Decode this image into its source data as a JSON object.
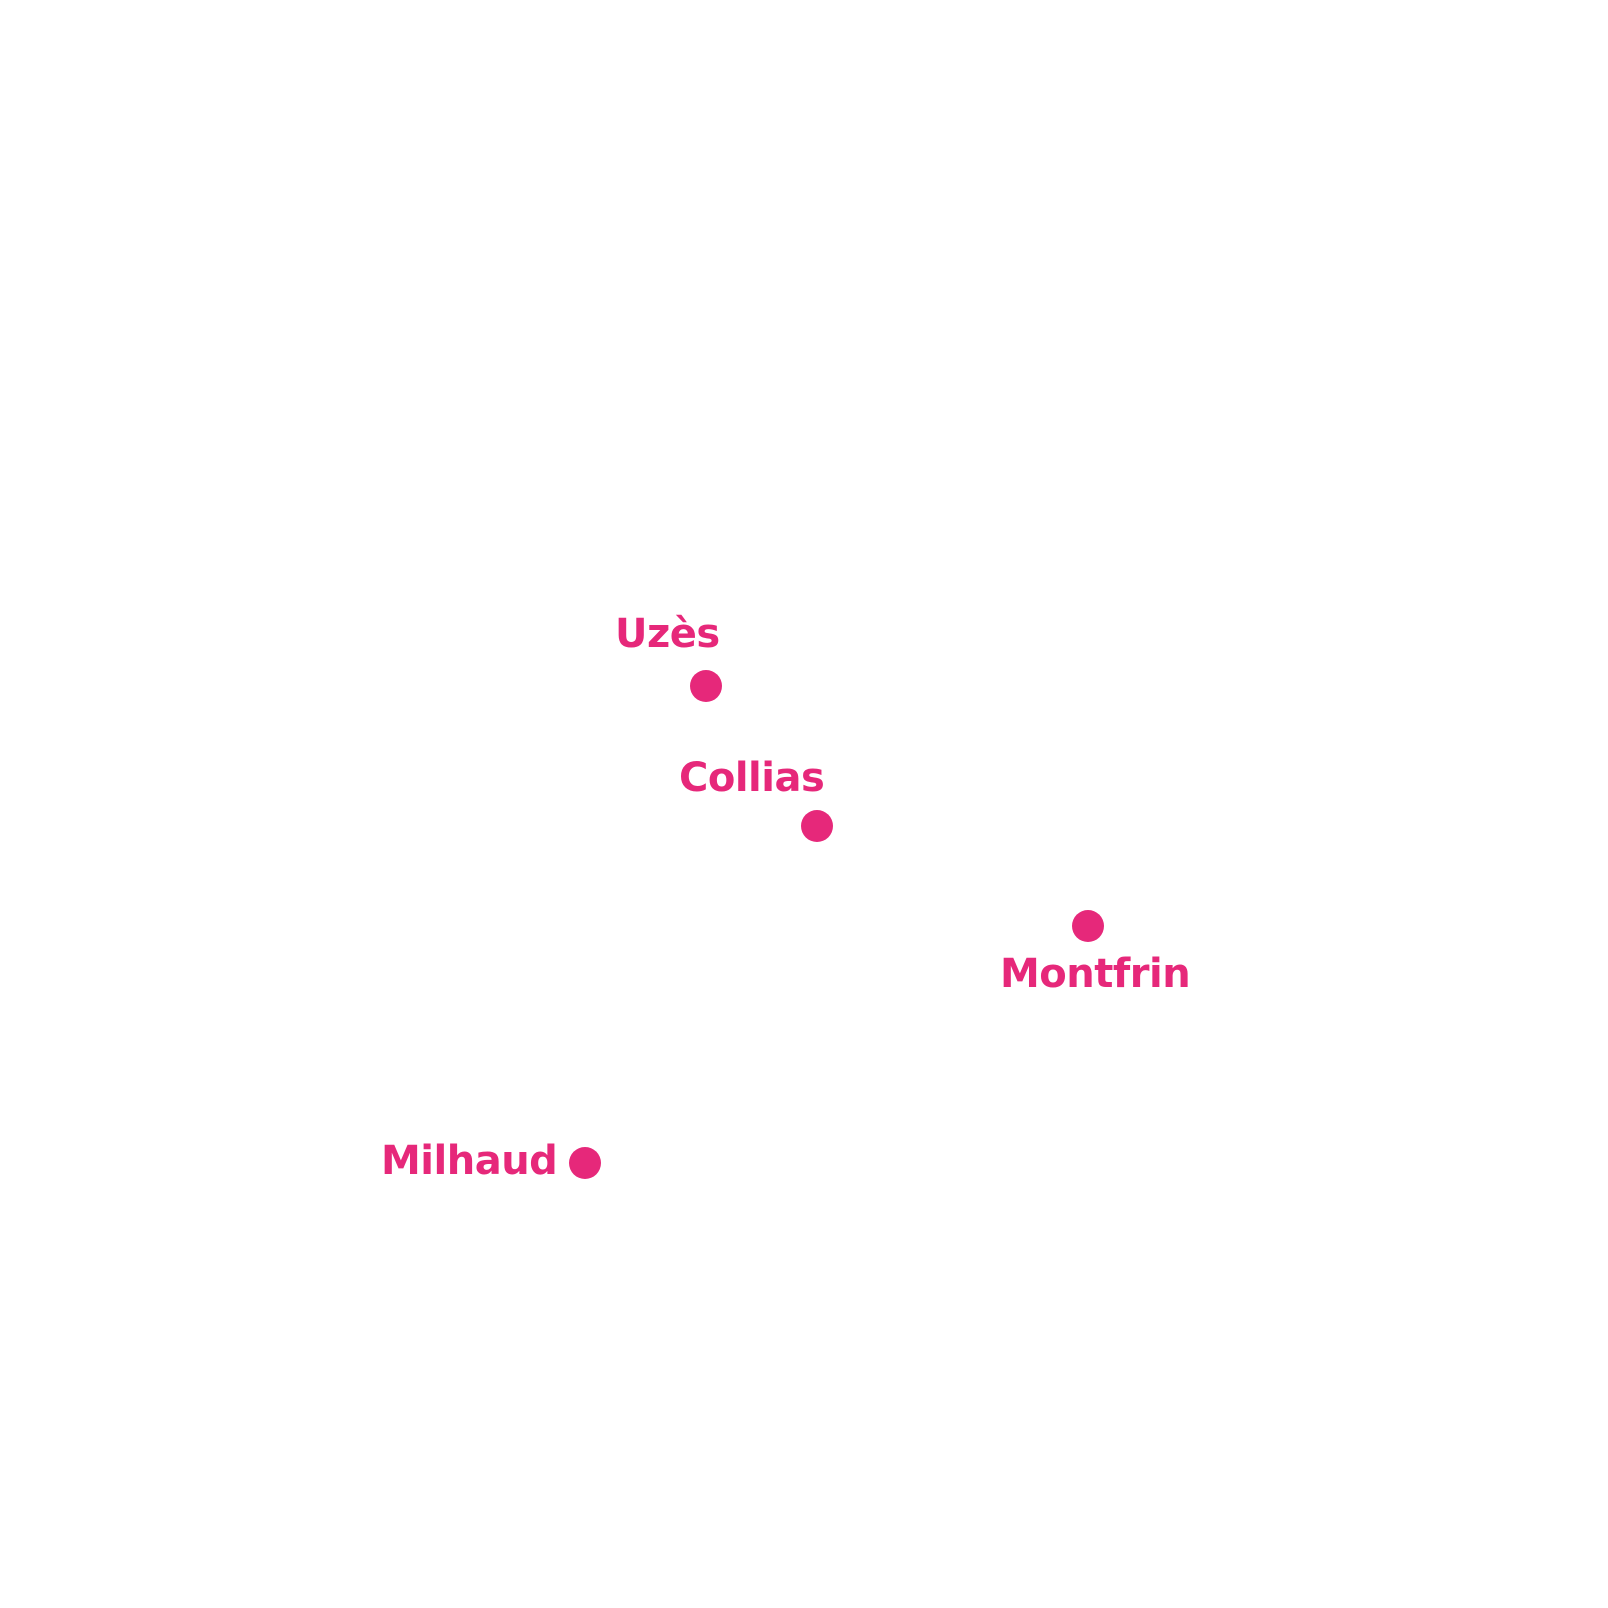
{
  "map": {
    "marker_color": "#e6287a",
    "places": [
      {
        "id": "uzes",
        "name": "Uzès"
      },
      {
        "id": "collias",
        "name": "Collias"
      },
      {
        "id": "montfrin",
        "name": "Montfrin"
      },
      {
        "id": "milhaud",
        "name": "Milhaud"
      }
    ]
  }
}
